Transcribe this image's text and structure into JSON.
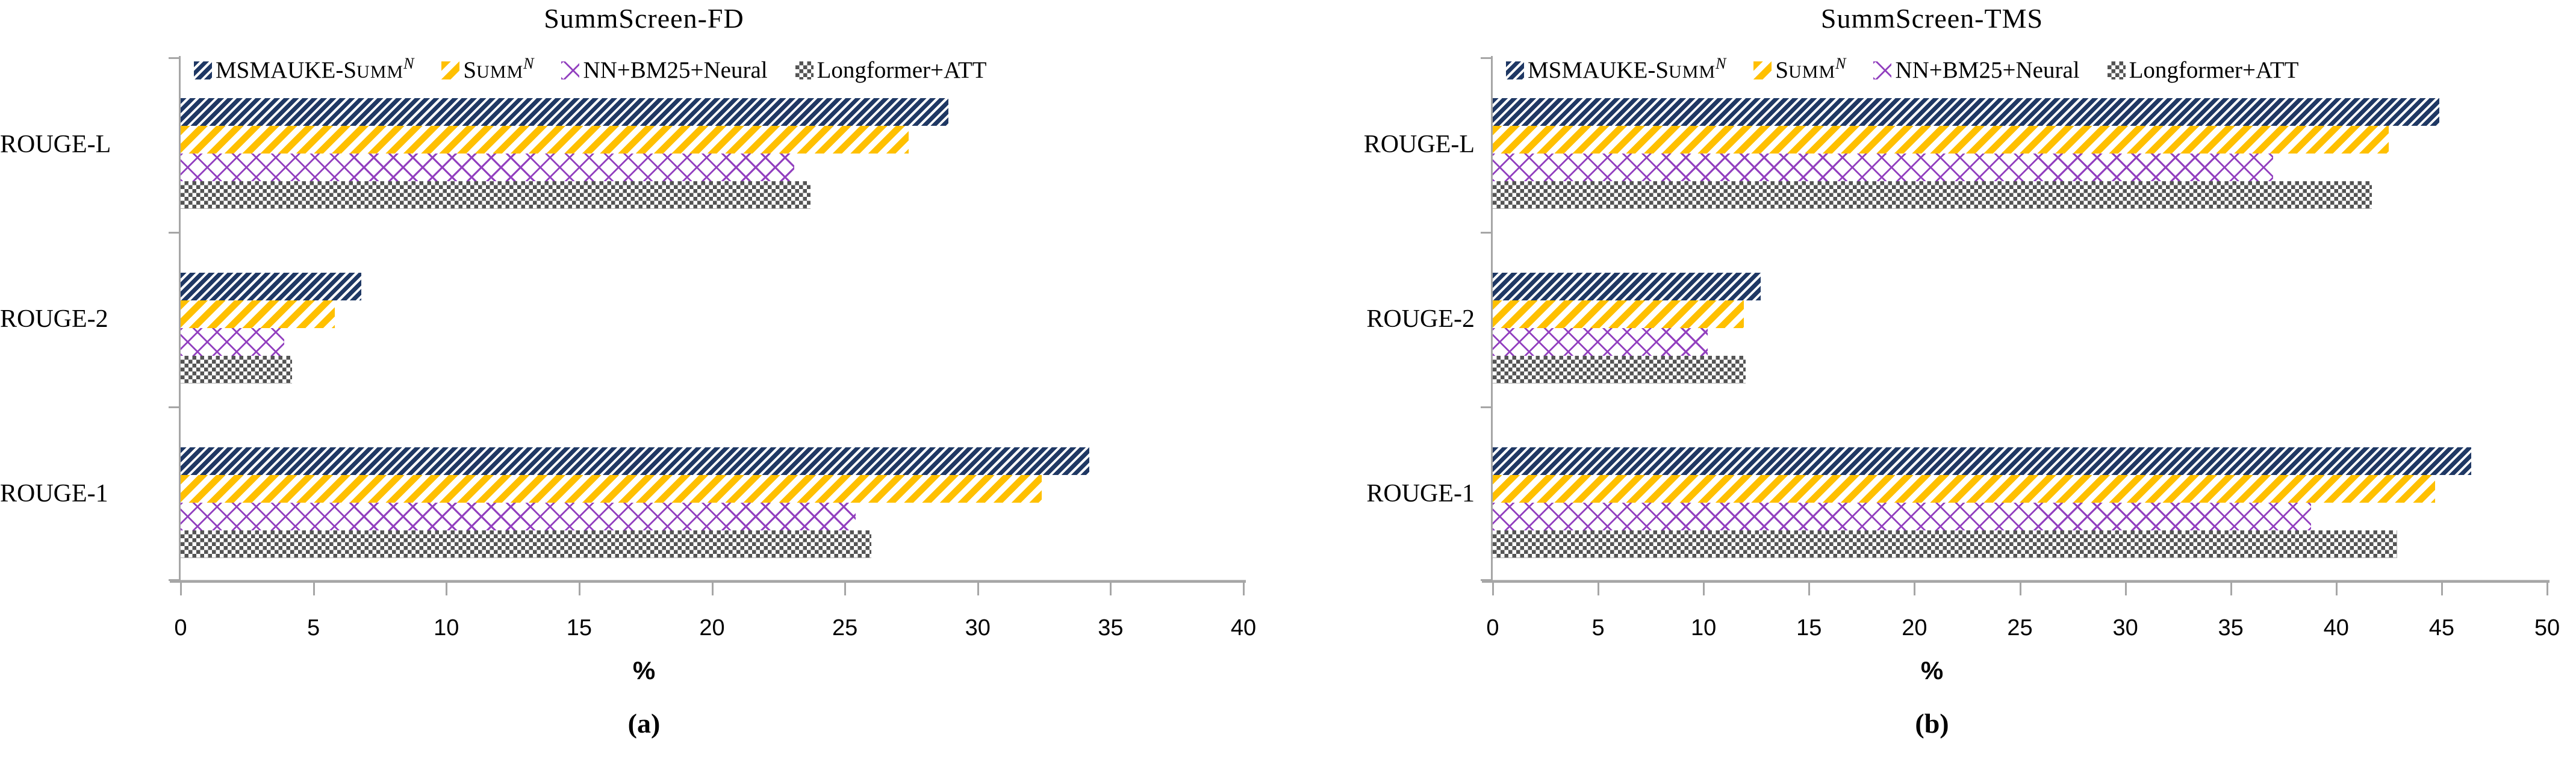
{
  "figure_colors": {
    "navy": "#1f3864",
    "yellow": "#ffc000",
    "purple": "#9240bf",
    "gray": "#545454",
    "axis_gray": "#a6a6a6"
  },
  "chart_data": [
    {
      "type": "bar",
      "orientation": "horizontal",
      "title": "SummScreen-FD",
      "caption": "(a)",
      "xlabel": "%",
      "xmax": 40,
      "xticks": [
        0,
        5,
        10,
        15,
        20,
        25,
        30,
        35,
        40
      ],
      "grid": false,
      "legend_position": "top-inside",
      "categories": [
        "ROUGE-L",
        "ROUGE-2",
        "ROUGE-1"
      ],
      "series": [
        {
          "name": "MSMAUKE-Summ^N",
          "label_pre": "MSMAUKE-S",
          "label_smallcaps": "UMM",
          "label_sup": "N",
          "color": "#1f3864",
          "pattern": "navy-diagonal-stripes",
          "values": [
            28.9,
            6.8,
            34.2
          ]
        },
        {
          "name": "Summ^N",
          "label_pre": "S",
          "label_smallcaps": "UMM",
          "label_sup": "N",
          "color": "#ffc000",
          "pattern": "yellow-diagonal-stripes",
          "values": [
            27.4,
            5.8,
            32.4
          ]
        },
        {
          "name": "NN+BM25+Neural",
          "label_pre": "NN+BM25+Neural",
          "label_smallcaps": "",
          "label_sup": "",
          "color": "#9240bf",
          "pattern": "purple-crosshatch",
          "values": [
            23.1,
            3.9,
            25.4
          ]
        },
        {
          "name": "Longformer+ATT",
          "label_pre": "Longformer+ATT",
          "label_smallcaps": "",
          "label_sup": "",
          "color": "#545454",
          "pattern": "gray-checkerboard",
          "values": [
            23.7,
            4.2,
            26.0
          ]
        }
      ]
    },
    {
      "type": "bar",
      "orientation": "horizontal",
      "title": "SummScreen-TMS",
      "caption": "(b)",
      "xlabel": "%",
      "xmax": 50,
      "xticks": [
        0,
        5,
        10,
        15,
        20,
        25,
        30,
        35,
        40,
        45,
        50
      ],
      "grid": false,
      "legend_position": "top-inside",
      "categories": [
        "ROUGE-L",
        "ROUGE-2",
        "ROUGE-1"
      ],
      "series": [
        {
          "name": "MSMAUKE-Summ^N",
          "label_pre": "MSMAUKE-S",
          "label_smallcaps": "UMM",
          "label_sup": "N",
          "color": "#1f3864",
          "pattern": "navy-diagonal-stripes",
          "values": [
            44.9,
            12.7,
            46.4
          ]
        },
        {
          "name": "Summ^N",
          "label_pre": "S",
          "label_smallcaps": "UMM",
          "label_sup": "N",
          "color": "#ffc000",
          "pattern": "yellow-diagonal-stripes",
          "values": [
            42.5,
            11.9,
            44.7
          ]
        },
        {
          "name": "NN+BM25+Neural",
          "label_pre": "NN+BM25+Neural",
          "label_smallcaps": "",
          "label_sup": "",
          "color": "#9240bf",
          "pattern": "purple-crosshatch",
          "values": [
            37.0,
            10.2,
            38.8
          ]
        },
        {
          "name": "Longformer+ATT",
          "label_pre": "Longformer+ATT",
          "label_smallcaps": "",
          "label_sup": "",
          "color": "#545454",
          "pattern": "gray-checkerboard",
          "values": [
            41.7,
            12.0,
            42.9
          ]
        }
      ]
    }
  ]
}
